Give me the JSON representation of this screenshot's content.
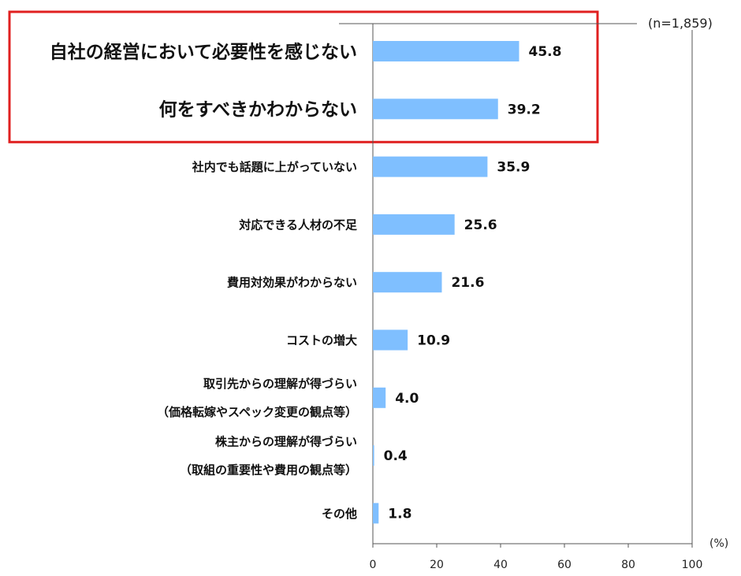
{
  "chart_data": {
    "type": "bar",
    "orientation": "horizontal",
    "note": "(n=1,859)",
    "unit_label": "(%)",
    "xlim": [
      0,
      100
    ],
    "xticks": [
      "0",
      "20",
      "40",
      "60",
      "80",
      "100"
    ],
    "bar_color": "#7fbfff",
    "highlight_color": "#e02020",
    "highlighted_categories": [
      0,
      1
    ],
    "categories": [
      {
        "lines": [
          "自社の経営において必要性を感じない"
        ],
        "value": 45.8,
        "label": "45.8"
      },
      {
        "lines": [
          "何をすべきかわからない"
        ],
        "value": 39.2,
        "label": "39.2"
      },
      {
        "lines": [
          "社内でも話題に上がっていない"
        ],
        "value": 35.9,
        "label": "35.9"
      },
      {
        "lines": [
          "対応できる人材の不足"
        ],
        "value": 25.6,
        "label": "25.6"
      },
      {
        "lines": [
          "費用対効果がわからない"
        ],
        "value": 21.6,
        "label": "21.6"
      },
      {
        "lines": [
          "コストの増大"
        ],
        "value": 10.9,
        "label": "10.9"
      },
      {
        "lines": [
          "取引先からの理解が得づらい",
          "（価格転嫁やスペック変更の観点等）"
        ],
        "value": 4.0,
        "label": "4.0"
      },
      {
        "lines": [
          "株主からの理解が得づらい",
          "（取組の重要性や費用の観点等）"
        ],
        "value": 0.4,
        "label": "0.4"
      },
      {
        "lines": [
          "その他"
        ],
        "value": 1.8,
        "label": "1.8"
      }
    ]
  }
}
